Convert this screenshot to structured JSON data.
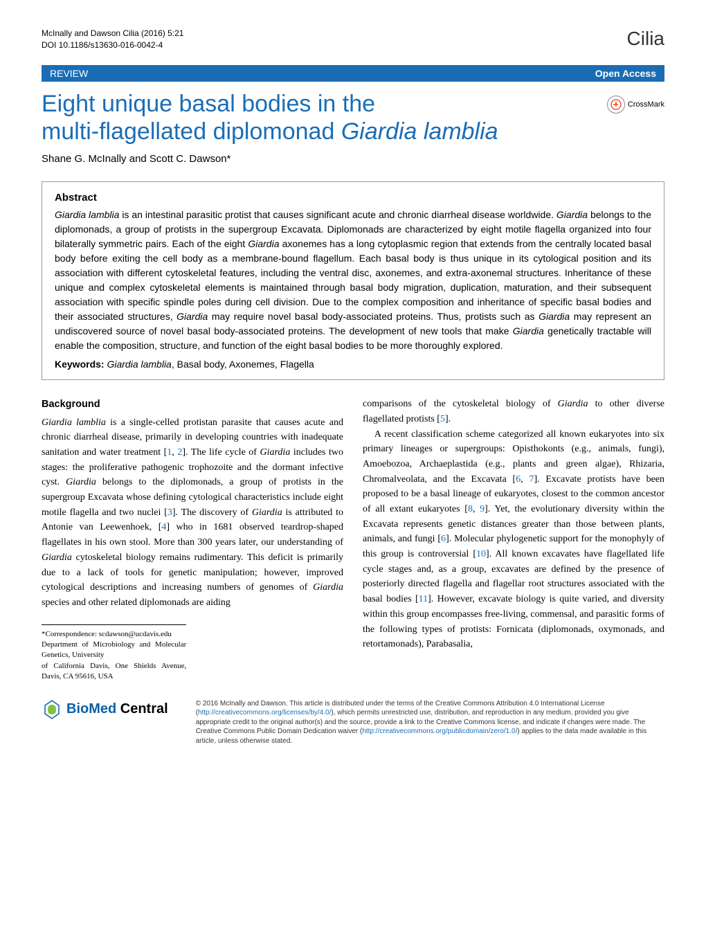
{
  "header": {
    "citation_line": "McInally and Dawson Cilia (2016) 5:21",
    "doi_line": "DOI 10.1186/s13630-016-0042-4",
    "journal_name": "Cilia"
  },
  "review_bar": {
    "label": "REVIEW",
    "open_access": "Open Access"
  },
  "title": {
    "line1": "Eight unique basal bodies in the",
    "line2_pre": "multi-flagellated diplomonad ",
    "line2_em": "Giardia lamblia"
  },
  "crossmark_label": "CrossMark",
  "authors": "Shane G. McInally and Scott C. Dawson*",
  "abstract": {
    "heading": "Abstract",
    "text_parts": [
      {
        "em": true,
        "t": "Giardia lamblia"
      },
      {
        "em": false,
        "t": " is an intestinal parasitic protist that causes significant acute and chronic diarrheal disease worldwide. "
      },
      {
        "em": true,
        "t": "Giardia"
      },
      {
        "em": false,
        "t": " belongs to the diplomonads, a group of protists in the supergroup Excavata. Diplomonads are characterized by eight motile flagella organized into four bilaterally symmetric pairs. Each of the eight "
      },
      {
        "em": true,
        "t": "Giardia"
      },
      {
        "em": false,
        "t": " axonemes has a long cytoplasmic region that extends from the centrally located basal body before exiting the cell body as a membrane-bound flagellum. Each basal body is thus unique in its cytological position and its association with different cytoskeletal features, including the ventral disc, axonemes, and extra-axonemal structures. Inheritance of these unique and complex cytoskeletal elements is maintained through basal body migration, duplication, maturation, and their subsequent association with specific spindle poles during cell division. Due to the complex composition and inheritance of specific basal bodies and their associated structures, "
      },
      {
        "em": true,
        "t": "Giardia"
      },
      {
        "em": false,
        "t": " may require novel basal body-associated proteins. Thus, protists such as "
      },
      {
        "em": true,
        "t": "Giardia"
      },
      {
        "em": false,
        "t": " may represent an undiscovered source of novel basal body-associated proteins. The development of new tools that make "
      },
      {
        "em": true,
        "t": "Giardia"
      },
      {
        "em": false,
        "t": " genetically tractable will enable the composition, structure, and function of the eight basal bodies to be more thoroughly explored."
      }
    ],
    "keywords_label": "Keywords: ",
    "keywords_parts": [
      {
        "em": true,
        "t": "Giardia lamblia"
      },
      {
        "em": false,
        "t": ", Basal body, Axonemes, Flagella"
      }
    ]
  },
  "body": {
    "background_heading": "Background",
    "col1_parts": [
      {
        "em": true,
        "t": "Giardia lamblia"
      },
      {
        "em": false,
        "t": " is a single-celled protistan parasite that causes acute and chronic diarrheal disease, primarily in developing countries with inadequate sanitation and water treatment ["
      },
      {
        "ref": true,
        "t": "1"
      },
      {
        "em": false,
        "t": ", "
      },
      {
        "ref": true,
        "t": "2"
      },
      {
        "em": false,
        "t": "]. The life cycle of "
      },
      {
        "em": true,
        "t": "Giardia"
      },
      {
        "em": false,
        "t": " includes two stages: the proliferative pathogenic trophozoite and the dormant infective cyst. "
      },
      {
        "em": true,
        "t": "Giardia"
      },
      {
        "em": false,
        "t": " belongs to the diplomonads, a group of protists in the supergroup Excavata whose defining cytological characteristics include eight motile flagella and two nuclei ["
      },
      {
        "ref": true,
        "t": "3"
      },
      {
        "em": false,
        "t": "]. The discovery of "
      },
      {
        "em": true,
        "t": "Giardia"
      },
      {
        "em": false,
        "t": " is attributed to Antonie van Leewenhoek, ["
      },
      {
        "ref": true,
        "t": "4"
      },
      {
        "em": false,
        "t": "] who in 1681 observed teardrop-shaped flagellates in his own stool. More than 300 years later, our understanding of "
      },
      {
        "em": true,
        "t": "Giardia"
      },
      {
        "em": false,
        "t": " cytoskeletal biology remains rudimentary. This deficit is primarily due to a lack of tools for genetic manipulation; however, improved cytological descriptions and increasing numbers of genomes of "
      },
      {
        "em": true,
        "t": "Giardia"
      },
      {
        "em": false,
        "t": " species and other related diplomonads are aiding"
      }
    ],
    "col2_p1_parts": [
      {
        "em": false,
        "t": "comparisons of the cytoskeletal biology of "
      },
      {
        "em": true,
        "t": "Giardia"
      },
      {
        "em": false,
        "t": " to other diverse flagellated protists ["
      },
      {
        "ref": true,
        "t": "5"
      },
      {
        "em": false,
        "t": "]."
      }
    ],
    "col2_p2_parts": [
      {
        "em": false,
        "t": "A recent classification scheme categorized all known eukaryotes into six primary lineages or supergroups: Opisthokonts (e.g., animals, fungi), Amoebozoa, Archaeplastida (e.g., plants and green algae), Rhizaria, Chromalveolata, and the Excavata ["
      },
      {
        "ref": true,
        "t": "6"
      },
      {
        "em": false,
        "t": ", "
      },
      {
        "ref": true,
        "t": "7"
      },
      {
        "em": false,
        "t": "]. Excavate protists have been proposed to be a basal lineage of eukaryotes, closest to the common ancestor of all extant eukaryotes ["
      },
      {
        "ref": true,
        "t": "8"
      },
      {
        "em": false,
        "t": ", "
      },
      {
        "ref": true,
        "t": "9"
      },
      {
        "em": false,
        "t": "]. Yet, the evolutionary diversity within the Excavata represents genetic distances greater than those between plants, animals, and fungi ["
      },
      {
        "ref": true,
        "t": "6"
      },
      {
        "em": false,
        "t": "]. Molecular phylogenetic support for the monophyly of this group is controversial ["
      },
      {
        "ref": true,
        "t": "10"
      },
      {
        "em": false,
        "t": "]. All known excavates have flagellated life cycle stages and, as a group, excavates are defined by the presence of posteriorly directed flagella and flagellar root structures associated with the basal bodies ["
      },
      {
        "ref": true,
        "t": "11"
      },
      {
        "em": false,
        "t": "]. However, excavate biology is quite varied, and diversity within this group encompasses free-living, commensal, and parasitic forms of the following types of protists: Fornicata (diplomonads, oxymonads, and retortamonads), Parabasalia,"
      }
    ]
  },
  "correspondence": {
    "line1": "*Correspondence: scdawson@ucdavis.edu",
    "line2": "Department of Microbiology and Molecular Genetics, University",
    "line3": "of California Davis, One Shields Avenue, Davis, CA 95616, USA"
  },
  "footer": {
    "bmc": {
      "bio": "BioMed",
      "central": " Central"
    },
    "license_parts": [
      {
        "t": "© 2016 McInally and Dawson. This article is distributed under the terms of the Creative Commons Attribution 4.0 International License ("
      },
      {
        "link": true,
        "t": "http://creativecommons.org/licenses/by/4.0/"
      },
      {
        "t": "), which permits unrestricted use, distribution, and reproduction in any medium, provided you give appropriate credit to the original author(s) and the source, provide a link to the Creative Commons license, and indicate if changes were made. The Creative Commons Public Domain Dedication waiver ("
      },
      {
        "link": true,
        "t": "http://creativecommons.org/publicdomain/zero/1.0/"
      },
      {
        "t": ") applies to the data made available in this article, unless otherwise stated."
      }
    ]
  },
  "colors": {
    "primary_blue": "#1a6db5",
    "link_blue": "#1a6db5",
    "text": "#000000",
    "border": "#999999"
  }
}
